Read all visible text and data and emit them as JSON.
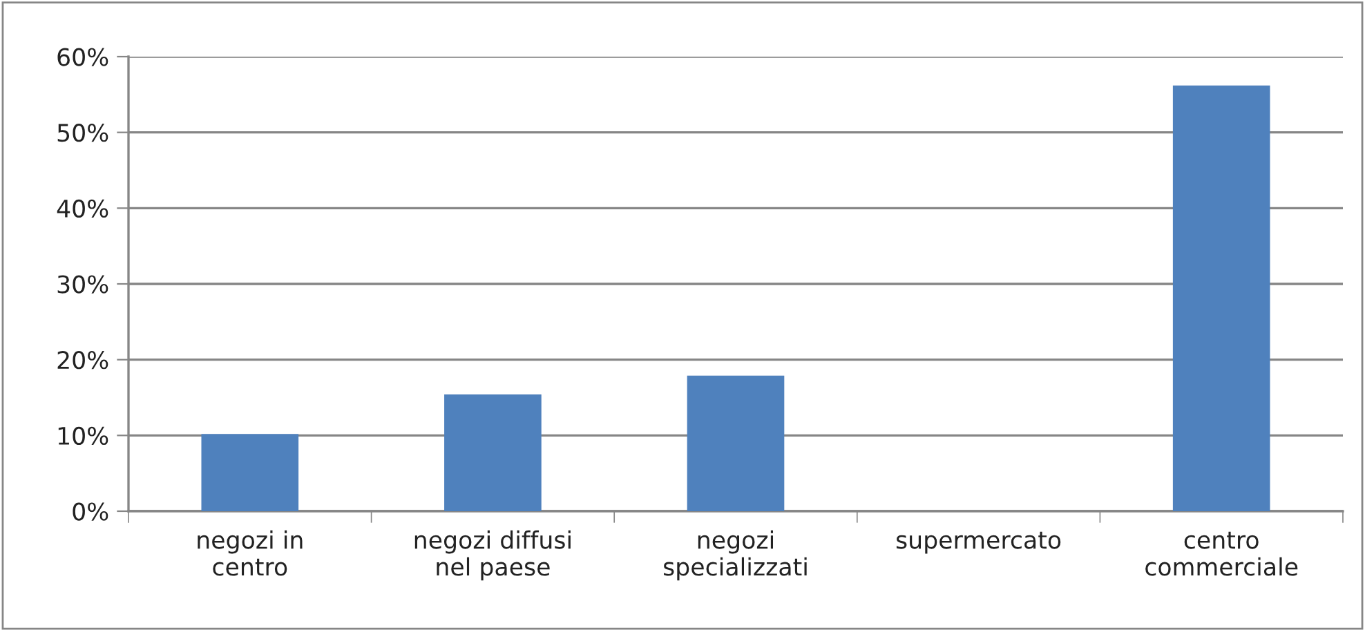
{
  "chart_data": {
    "type": "bar",
    "categories": [
      "negozi in\ncentro",
      "negozi diffusi\nnel paese",
      "negozi\nspecializzati",
      "supermercato",
      "centro\ncommerciale"
    ],
    "values": [
      10.2,
      15.4,
      17.9,
      0,
      56.2
    ],
    "color": "#4f81bd",
    "ylim": [
      0,
      60
    ],
    "yticks": [
      {
        "value": 0,
        "label": "0%"
      },
      {
        "value": 10,
        "label": "10%"
      },
      {
        "value": 20,
        "label": "20%"
      },
      {
        "value": 30,
        "label": "30%"
      },
      {
        "value": 40,
        "label": "40%"
      },
      {
        "value": 50,
        "label": "50%"
      },
      {
        "value": 60,
        "label": "60%"
      }
    ],
    "grid": "y",
    "legend": false
  }
}
